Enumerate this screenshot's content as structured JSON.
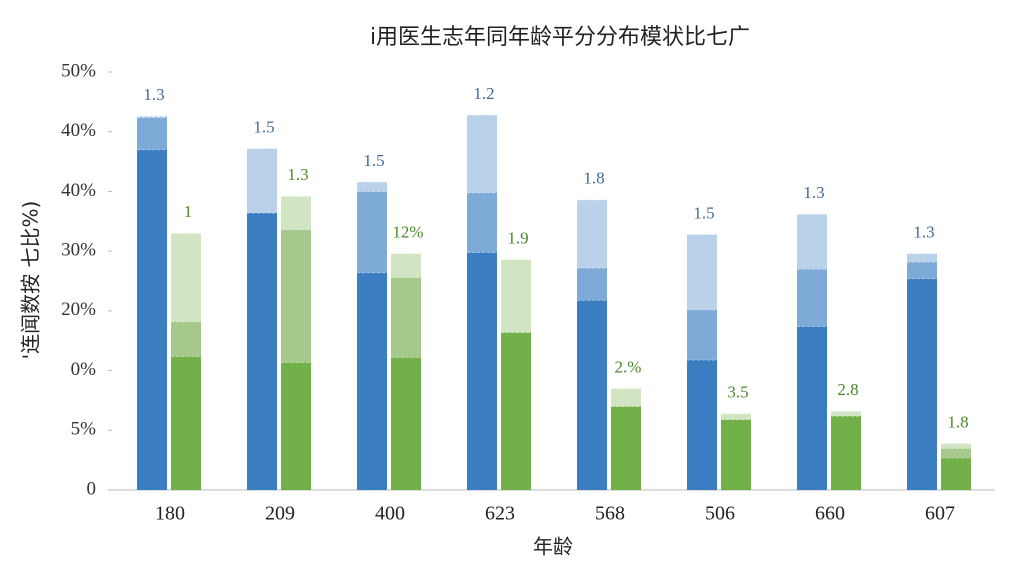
{
  "chart_data": {
    "type": "bar",
    "title": "i用医生志年同年龄平分分布模状比七广",
    "x_label": "年龄",
    "y_label": "'连闻数按 七比%)",
    "categories": [
      "180",
      "209",
      "400",
      "623",
      "568",
      "506",
      "660",
      "607"
    ],
    "ylim": [
      0,
      35
    ],
    "yticks": [
      0,
      {
        "value": 5,
        "label": "5%"
      },
      {
        "value": 10,
        "label": "0%"
      },
      {
        "value": 15,
        "label": "20%"
      },
      {
        "value": 20,
        "label": "30%"
      },
      {
        "value": 25,
        "label": "40%"
      },
      {
        "value": 30,
        "label": "40%"
      },
      {
        "value": 35,
        "label": "50%"
      }
    ],
    "series": [
      {
        "group": 0,
        "color": "#3a7dc0",
        "values": [
          28.5,
          23.2,
          18.2,
          19.9,
          15.9,
          10.9,
          13.7,
          17.7
        ]
      },
      {
        "group": 0,
        "color": "#7eaad7",
        "values": [
          2.7,
          0,
          6.8,
          5.0,
          2.7,
          4.2,
          4.8,
          1.4
        ]
      },
      {
        "group": 0,
        "color": "#b9d2ea",
        "values": [
          0.1,
          5.4,
          0.8,
          6.5,
          5.7,
          6.3,
          4.6,
          0.7
        ]
      },
      {
        "group": 1,
        "color": "#72b04a",
        "values": [
          11.2,
          10.7,
          11.1,
          13.2,
          7.0,
          5.9,
          6.2,
          2.7
        ]
      },
      {
        "group": 1,
        "color": "#a5c98b",
        "values": [
          2.9,
          11.1,
          6.7,
          0,
          0,
          0,
          0,
          0.8
        ]
      },
      {
        "group": 1,
        "color": "#d2e5c3",
        "values": [
          7.4,
          2.8,
          2.0,
          6.1,
          1.5,
          0.5,
          0.4,
          0.4
        ]
      }
    ],
    "annotations": [
      {
        "color": "#3f6a99",
        "labels": [
          "1.3",
          "1.5",
          "1.5",
          "1.2",
          "1.8",
          "1.5",
          "1.3",
          "1.3"
        ]
      },
      {
        "color": "#4a8a2a",
        "labels": [
          "1",
          "1.3",
          "12%",
          "1.9",
          "2.%",
          "3.5",
          "2.8",
          "1.8"
        ]
      }
    ]
  }
}
